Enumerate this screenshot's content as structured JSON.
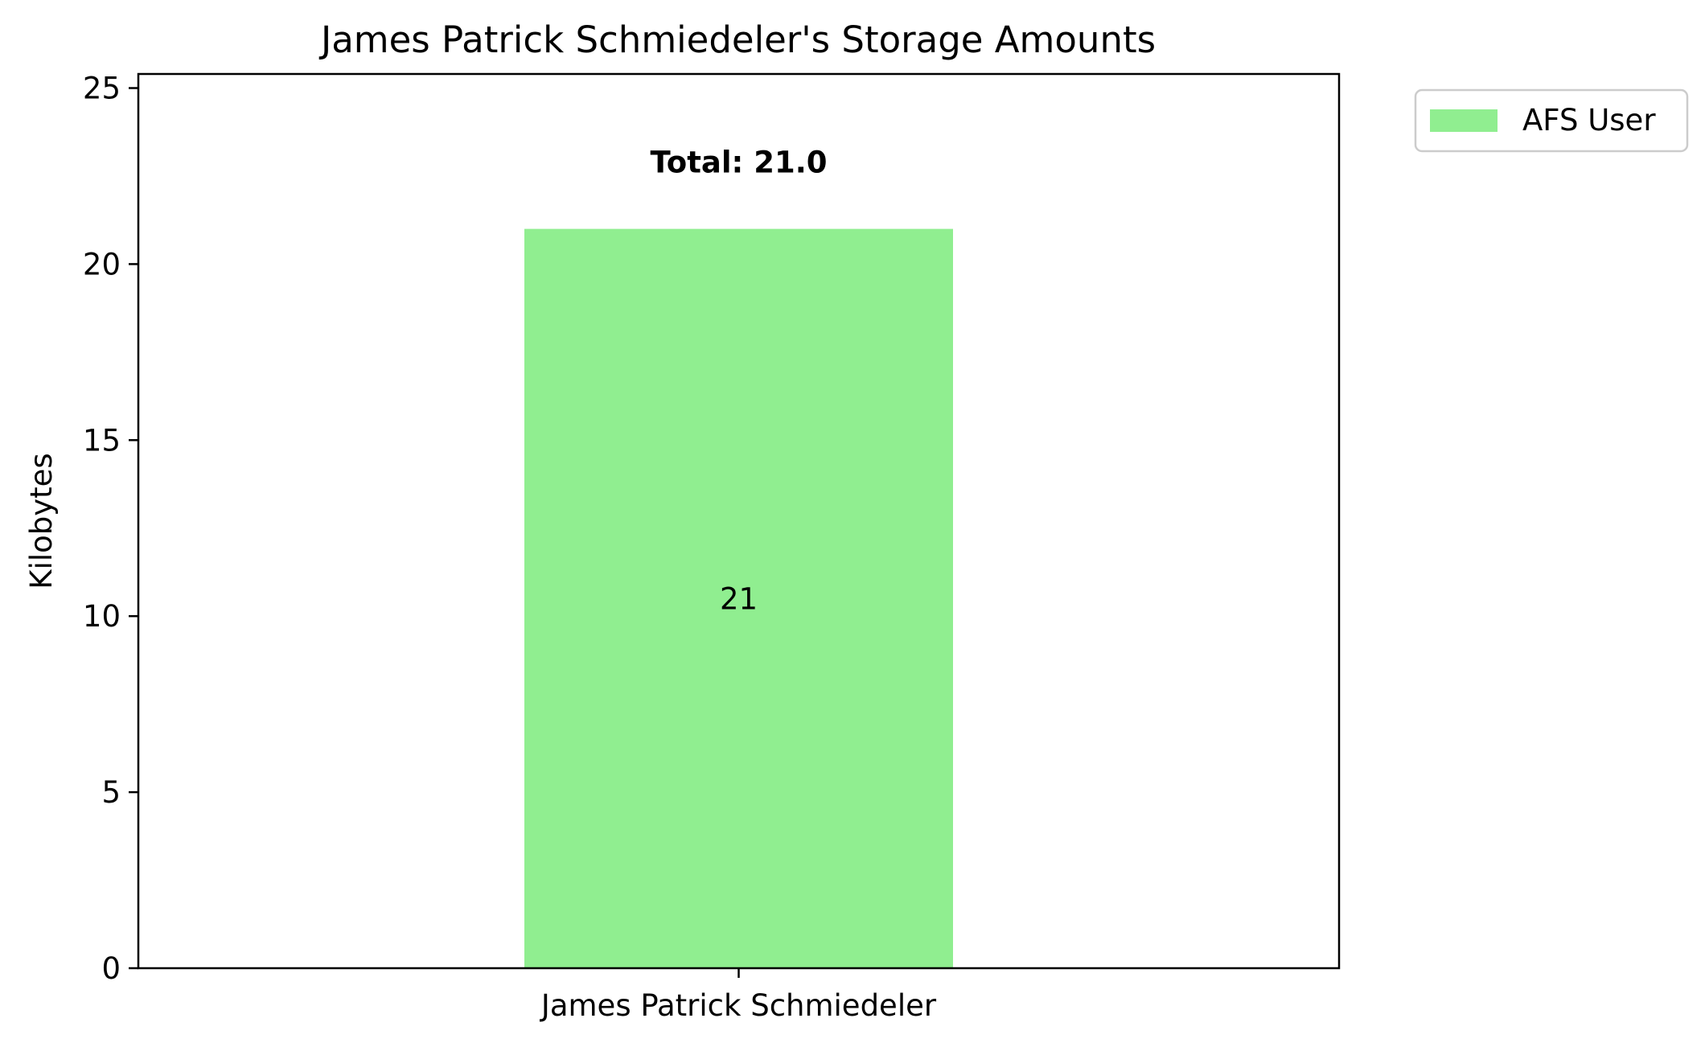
{
  "chart_data": {
    "type": "bar",
    "title": "James Patrick Schmiedeler's Storage Amounts",
    "xlabel": "",
    "ylabel": "Kilobytes",
    "categories": [
      "James Patrick Schmiedeler"
    ],
    "series": [
      {
        "name": "AFS User",
        "values": [
          21
        ],
        "color": "#90ee90"
      }
    ],
    "data_labels": [
      "21"
    ],
    "total_labels": [
      "Total: 21.0"
    ],
    "ylim": [
      0,
      25.4
    ],
    "yticks": [
      0,
      5,
      10,
      15,
      20,
      25
    ],
    "grid": false,
    "legend": {
      "placement": "outside-top-right",
      "entries": [
        "AFS User"
      ]
    }
  }
}
